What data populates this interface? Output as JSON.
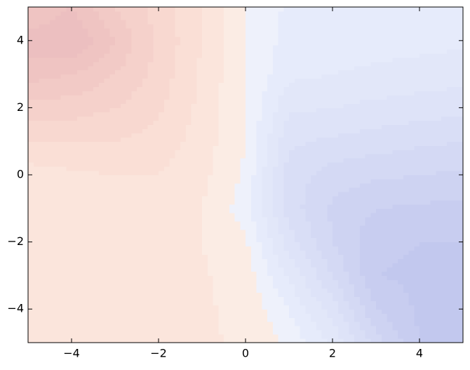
{
  "chart_data": {
    "type": "contourf",
    "x": [
      -5,
      -4,
      -3,
      -2,
      -1,
      0,
      1,
      2,
      3,
      4,
      5
    ],
    "y": [
      -5,
      -4,
      -3,
      -2,
      -1,
      0,
      1,
      2,
      3,
      4,
      5
    ],
    "z": [
      [
        0.12,
        0.12,
        0.12,
        0.12,
        0.11,
        0.09,
        -0.02,
        -0.22,
        -0.55,
        -0.8,
        -0.82
      ],
      [
        0.12,
        0.12,
        0.12,
        0.12,
        0.11,
        0.08,
        -0.1,
        -0.35,
        -0.7,
        -0.82,
        -0.82
      ],
      [
        0.12,
        0.12,
        0.12,
        0.12,
        0.11,
        0.06,
        -0.22,
        -0.5,
        -0.8,
        -0.82,
        -0.82
      ],
      [
        0.12,
        0.12,
        0.12,
        0.12,
        0.1,
        0.02,
        -0.35,
        -0.6,
        -0.78,
        -0.8,
        -0.8
      ],
      [
        0.13,
        0.13,
        0.14,
        0.14,
        0.1,
        -0.05,
        -0.45,
        -0.62,
        -0.7,
        -0.72,
        -0.73
      ],
      [
        0.15,
        0.18,
        0.2,
        0.2,
        0.13,
        -0.02,
        -0.45,
        -0.55,
        -0.58,
        -0.6,
        -0.62
      ],
      [
        0.3,
        0.3,
        0.3,
        0.26,
        0.15,
        0.0,
        -0.38,
        -0.42,
        -0.45,
        -0.48,
        -0.5
      ],
      [
        0.45,
        0.45,
        0.4,
        0.32,
        0.17,
        0.0,
        -0.28,
        -0.3,
        -0.33,
        -0.35,
        -0.37
      ],
      [
        0.65,
        0.6,
        0.5,
        0.36,
        0.18,
        0.0,
        -0.18,
        -0.2,
        -0.22,
        -0.24,
        -0.26
      ],
      [
        0.75,
        0.8,
        0.6,
        0.38,
        0.2,
        0.0,
        -0.14,
        -0.15,
        -0.16,
        -0.17,
        -0.18
      ],
      [
        0.6,
        0.7,
        0.5,
        0.35,
        0.2,
        0.0,
        -0.12,
        -0.13,
        -0.14,
        -0.15,
        -0.15
      ]
    ],
    "levels": [
      -0.9,
      -0.8,
      -0.7,
      -0.6,
      -0.5,
      -0.4,
      -0.3,
      -0.2,
      -0.1,
      0,
      0.1,
      0.2,
      0.3,
      0.4,
      0.5,
      0.6,
      0.7,
      0.8,
      0.9
    ],
    "colors": [
      "#c2c8ee",
      "#c8cdf0",
      "#ced3f2",
      "#d4d9f4",
      "#d9def6",
      "#dee3f8",
      "#e2e7f9",
      "#e6ebfb",
      "#eef1fb",
      "#fbece4",
      "#fbe5dc",
      "#fadfd6",
      "#f8d8d0",
      "#f5d1cb",
      "#f2cac6",
      "#efc4c2",
      "#ecbfc0",
      "#e9b9bd"
    ],
    "xlim": [
      -5,
      5
    ],
    "ylim": [
      -5,
      5
    ],
    "xticks": [
      {
        "value": -4,
        "label": "−4"
      },
      {
        "value": -2,
        "label": "−2"
      },
      0,
      2,
      4
    ],
    "yticks": [
      {
        "value": -4,
        "label": "−4"
      },
      {
        "value": -2,
        "label": "−2"
      },
      0,
      2,
      4
    ]
  }
}
